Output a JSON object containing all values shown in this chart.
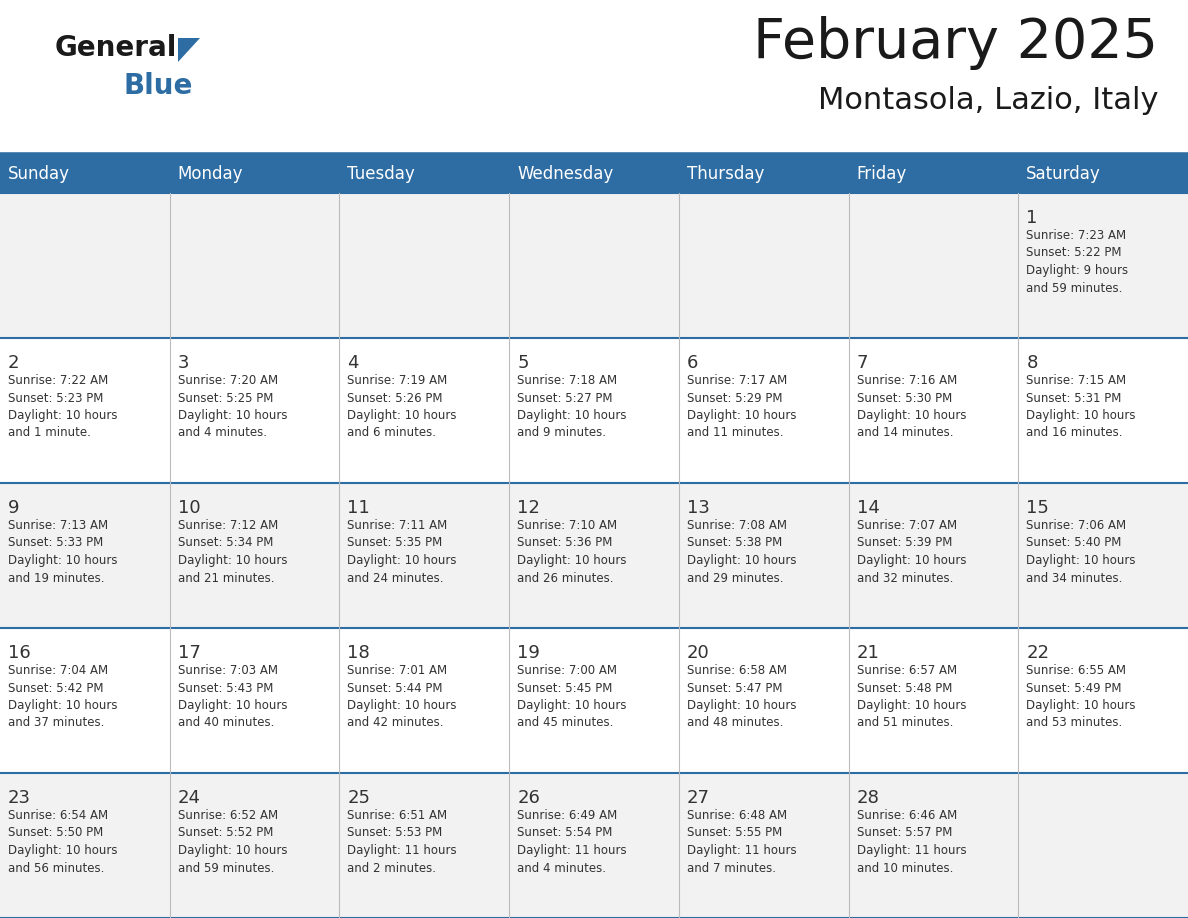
{
  "title": "February 2025",
  "subtitle": "Montasola, Lazio, Italy",
  "header_bg": "#2E6DA4",
  "header_text_color": "#FFFFFF",
  "row_bg_odd": "#f2f2f2",
  "row_bg_even": "#ffffff",
  "day_names": [
    "Sunday",
    "Monday",
    "Tuesday",
    "Wednesday",
    "Thursday",
    "Friday",
    "Saturday"
  ],
  "title_color": "#1a1a1a",
  "subtitle_color": "#1a1a1a",
  "line_color": "#2E6DA4",
  "day_num_color": "#333333",
  "cell_text_color": "#333333",
  "weeks": [
    [
      {
        "day": 0,
        "info": ""
      },
      {
        "day": 0,
        "info": ""
      },
      {
        "day": 0,
        "info": ""
      },
      {
        "day": 0,
        "info": ""
      },
      {
        "day": 0,
        "info": ""
      },
      {
        "day": 0,
        "info": ""
      },
      {
        "day": 1,
        "info": "Sunrise: 7:23 AM\nSunset: 5:22 PM\nDaylight: 9 hours\nand 59 minutes."
      }
    ],
    [
      {
        "day": 2,
        "info": "Sunrise: 7:22 AM\nSunset: 5:23 PM\nDaylight: 10 hours\nand 1 minute."
      },
      {
        "day": 3,
        "info": "Sunrise: 7:20 AM\nSunset: 5:25 PM\nDaylight: 10 hours\nand 4 minutes."
      },
      {
        "day": 4,
        "info": "Sunrise: 7:19 AM\nSunset: 5:26 PM\nDaylight: 10 hours\nand 6 minutes."
      },
      {
        "day": 5,
        "info": "Sunrise: 7:18 AM\nSunset: 5:27 PM\nDaylight: 10 hours\nand 9 minutes."
      },
      {
        "day": 6,
        "info": "Sunrise: 7:17 AM\nSunset: 5:29 PM\nDaylight: 10 hours\nand 11 minutes."
      },
      {
        "day": 7,
        "info": "Sunrise: 7:16 AM\nSunset: 5:30 PM\nDaylight: 10 hours\nand 14 minutes."
      },
      {
        "day": 8,
        "info": "Sunrise: 7:15 AM\nSunset: 5:31 PM\nDaylight: 10 hours\nand 16 minutes."
      }
    ],
    [
      {
        "day": 9,
        "info": "Sunrise: 7:13 AM\nSunset: 5:33 PM\nDaylight: 10 hours\nand 19 minutes."
      },
      {
        "day": 10,
        "info": "Sunrise: 7:12 AM\nSunset: 5:34 PM\nDaylight: 10 hours\nand 21 minutes."
      },
      {
        "day": 11,
        "info": "Sunrise: 7:11 AM\nSunset: 5:35 PM\nDaylight: 10 hours\nand 24 minutes."
      },
      {
        "day": 12,
        "info": "Sunrise: 7:10 AM\nSunset: 5:36 PM\nDaylight: 10 hours\nand 26 minutes."
      },
      {
        "day": 13,
        "info": "Sunrise: 7:08 AM\nSunset: 5:38 PM\nDaylight: 10 hours\nand 29 minutes."
      },
      {
        "day": 14,
        "info": "Sunrise: 7:07 AM\nSunset: 5:39 PM\nDaylight: 10 hours\nand 32 minutes."
      },
      {
        "day": 15,
        "info": "Sunrise: 7:06 AM\nSunset: 5:40 PM\nDaylight: 10 hours\nand 34 minutes."
      }
    ],
    [
      {
        "day": 16,
        "info": "Sunrise: 7:04 AM\nSunset: 5:42 PM\nDaylight: 10 hours\nand 37 minutes."
      },
      {
        "day": 17,
        "info": "Sunrise: 7:03 AM\nSunset: 5:43 PM\nDaylight: 10 hours\nand 40 minutes."
      },
      {
        "day": 18,
        "info": "Sunrise: 7:01 AM\nSunset: 5:44 PM\nDaylight: 10 hours\nand 42 minutes."
      },
      {
        "day": 19,
        "info": "Sunrise: 7:00 AM\nSunset: 5:45 PM\nDaylight: 10 hours\nand 45 minutes."
      },
      {
        "day": 20,
        "info": "Sunrise: 6:58 AM\nSunset: 5:47 PM\nDaylight: 10 hours\nand 48 minutes."
      },
      {
        "day": 21,
        "info": "Sunrise: 6:57 AM\nSunset: 5:48 PM\nDaylight: 10 hours\nand 51 minutes."
      },
      {
        "day": 22,
        "info": "Sunrise: 6:55 AM\nSunset: 5:49 PM\nDaylight: 10 hours\nand 53 minutes."
      }
    ],
    [
      {
        "day": 23,
        "info": "Sunrise: 6:54 AM\nSunset: 5:50 PM\nDaylight: 10 hours\nand 56 minutes."
      },
      {
        "day": 24,
        "info": "Sunrise: 6:52 AM\nSunset: 5:52 PM\nDaylight: 10 hours\nand 59 minutes."
      },
      {
        "day": 25,
        "info": "Sunrise: 6:51 AM\nSunset: 5:53 PM\nDaylight: 11 hours\nand 2 minutes."
      },
      {
        "day": 26,
        "info": "Sunrise: 6:49 AM\nSunset: 5:54 PM\nDaylight: 11 hours\nand 4 minutes."
      },
      {
        "day": 27,
        "info": "Sunrise: 6:48 AM\nSunset: 5:55 PM\nDaylight: 11 hours\nand 7 minutes."
      },
      {
        "day": 28,
        "info": "Sunrise: 6:46 AM\nSunset: 5:57 PM\nDaylight: 11 hours\nand 10 minutes."
      },
      {
        "day": 0,
        "info": ""
      }
    ]
  ]
}
